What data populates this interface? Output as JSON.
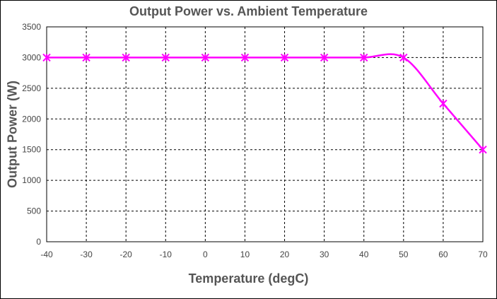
{
  "chart_data": {
    "type": "line",
    "title": "Output Power vs. Ambient Temperature",
    "xlabel": "Temperature (degC)",
    "ylabel": "Output Power (W)",
    "xlim": [
      -40,
      70
    ],
    "ylim": [
      0,
      3500
    ],
    "xticks": [
      "-40",
      "-30",
      "-20",
      "-10",
      "0",
      "10",
      "20",
      "30",
      "40",
      "50",
      "60",
      "70"
    ],
    "yticks": [
      "0",
      "500",
      "1000",
      "1500",
      "2000",
      "2500",
      "3000",
      "3500"
    ],
    "grid": true,
    "legend": "none",
    "series": [
      {
        "x": [
          -40,
          -30,
          -20,
          -10,
          0,
          10,
          20,
          30,
          40,
          50,
          60,
          70
        ],
        "y": [
          3000,
          3000,
          3000,
          3000,
          3000,
          3000,
          3000,
          3000,
          3000,
          3000,
          2250,
          1500
        ],
        "color": "#ff00ff",
        "marker": "star"
      }
    ]
  }
}
